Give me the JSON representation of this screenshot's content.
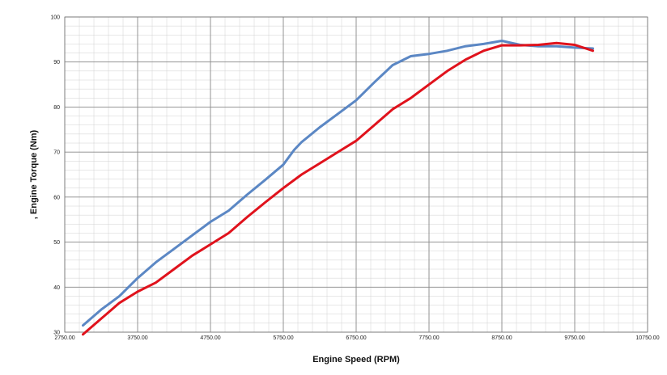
{
  "chart_data": {
    "type": "line",
    "title": "",
    "xlabel": "Engine Speed (RPM)",
    "ylabel": ", Engine Torque (Nm)",
    "xlim": [
      2750,
      10750
    ],
    "ylim": [
      30,
      100
    ],
    "x_ticks": [
      2750,
      3750,
      4750,
      5750,
      6750,
      7750,
      8750,
      9750,
      10750
    ],
    "x_tick_labels": [
      "2750.00",
      "3750.00",
      "4750.00",
      "5750.00",
      "6750.00",
      "7750.00",
      "8750.00",
      "9750.00",
      "10750.00"
    ],
    "y_ticks": [
      30,
      40,
      50,
      60,
      70,
      80,
      90,
      100
    ],
    "y_tick_labels": [
      "30",
      "40",
      "50",
      "60",
      "70",
      "80",
      "90",
      "100"
    ],
    "grid": true,
    "legend": "none",
    "series": [
      {
        "color": "#5b87c4",
        "x": [
          3000,
          3250,
          3500,
          3750,
          4000,
          4250,
          4500,
          4750,
          5000,
          5250,
          5500,
          5750,
          5900,
          6000,
          6250,
          6500,
          6750,
          7000,
          7250,
          7500,
          7750,
          8000,
          8250,
          8500,
          8750,
          9000,
          9250,
          9500,
          9750,
          10000
        ],
        "y": [
          31.5,
          35.0,
          38.0,
          42.0,
          45.5,
          48.5,
          51.5,
          54.5,
          57.0,
          60.5,
          63.8,
          67.2,
          70.5,
          72.2,
          75.5,
          78.5,
          81.5,
          85.5,
          89.3,
          91.3,
          91.8,
          92.5,
          93.5,
          94.0,
          94.7,
          93.8,
          93.5,
          93.5,
          93.2,
          93.0
        ]
      },
      {
        "color": "#e0121c",
        "x": [
          3000,
          3250,
          3500,
          3750,
          4000,
          4250,
          4500,
          4750,
          5000,
          5250,
          5500,
          5750,
          6000,
          6250,
          6500,
          6750,
          7000,
          7250,
          7500,
          7750,
          8000,
          8250,
          8500,
          8750,
          9000,
          9250,
          9500,
          9750,
          10000
        ],
        "y": [
          29.5,
          33.0,
          36.5,
          39.0,
          41.0,
          44.0,
          47.0,
          49.5,
          52.0,
          55.5,
          58.8,
          62.0,
          65.0,
          67.5,
          70.0,
          72.5,
          76.0,
          79.5,
          82.0,
          85.0,
          88.0,
          90.5,
          92.5,
          93.7,
          93.7,
          93.8,
          94.2,
          93.8,
          92.5
        ]
      }
    ]
  }
}
